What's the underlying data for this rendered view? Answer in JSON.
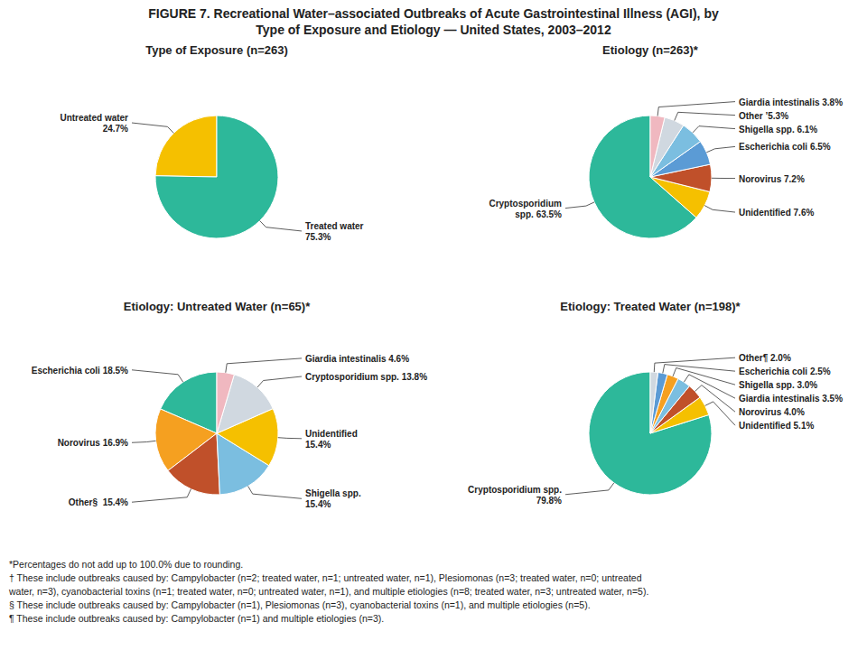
{
  "title": "FIGURE 7. Recreational Water–associated Outbreaks of Acute Gastrointestinal Illness (AGI), by\nType of Exposure and Etiology — United States, 2003–2012",
  "annotations": [
    "*Percentages do not add up to 100.0% due to rounding.",
    "† These include outbreaks caused by: Campylobacter (n=2; treated water, n=1; untreated water, n=1), Plesiomonas (n=3; treated water, n=0; untreated",
    "water, n=3), cyanobacterial toxins (n=1; treated water, n=0; untreated water, n=1), and multiple etiologies (n=8; treated water, n=3; untreated water, n=5).",
    "§ These include outbreaks caused by: Campylobacter (n=1), Plesiomonas (n=3), cyanobacterial toxins (n=1), and multiple etiologies (n=5).",
    "¶ These include outbreaks caused by: Campylobacter (n=1) and multiple etiologies (n=3)."
  ],
  "chart_data": [
    {
      "type": "pie",
      "title": "Type of Exposure (n=263)",
      "values": [
        24.7,
        75.3
      ],
      "value_labels": [
        "Untreated water\n24.7%",
        "Treated water\n75.3%"
      ],
      "colors": [
        "#F5C000",
        "#2DB89A"
      ],
      "data_labels": true
    },
    {
      "type": "pie",
      "title": "Etiology (n=263)*",
      "values": [
        63.5,
        7.6,
        7.2,
        6.5,
        6.1,
        5.3,
        3.8
      ],
      "value_labels": [
        "Cryptosporidium\nspp. 63.5%",
        "Unidentified 7.6%",
        "Norovirus 7.2%",
        "Escherichia coli 6.5%",
        "Shigella spp. 6.1%",
        "Other ’5.3%",
        "Giardia intestinalis 3.8%"
      ],
      "colors": [
        "#2DB89A",
        "#F5C000",
        "#C0502A",
        "#5B9BD5",
        "#7BBEE0",
        "#D0D8E0",
        "#F0B8C0"
      ],
      "data_labels": true
    },
    {
      "type": "pie",
      "title": "Etiology: Untreated Water (n=65)*",
      "values": [
        18.5,
        16.9,
        15.4,
        15.4,
        15.4,
        13.8,
        4.6
      ],
      "value_labels": [
        "Escherichia coli 18.5%",
        "Norovirus 16.9%",
        "Other§  15.4%",
        "Shigella spp.\n15.4%",
        "Unidentified\n15.4%",
        "Cryptosporidium spp. 13.8%",
        "Giardia intestinalis 4.6%"
      ],
      "colors": [
        "#2DB89A",
        "#F5A020",
        "#C0502A",
        "#7BBEE0",
        "#F5C000",
        "#D0D8E0",
        "#F0B8C0"
      ],
      "data_labels": true
    },
    {
      "type": "pie",
      "title": "Etiology: Treated Water (n=198)*",
      "values": [
        79.8,
        5.1,
        4.0,
        3.5,
        3.0,
        2.5,
        2.0
      ],
      "value_labels": [
        "Cryptosporidium spp.\n79.8%",
        "Unidentified 5.1%",
        "Norovirus 4.0%",
        "Giardia intestinalis 3.5%",
        "Shigella spp. 3.0%",
        "Escherichia coli 2.5%",
        "Other¶ 2.0%"
      ],
      "colors": [
        "#2DB89A",
        "#F5C000",
        "#C0502A",
        "#7BBEE0",
        "#F5A020",
        "#5B9BD5",
        "#D0D8E0"
      ],
      "data_labels": true
    }
  ]
}
